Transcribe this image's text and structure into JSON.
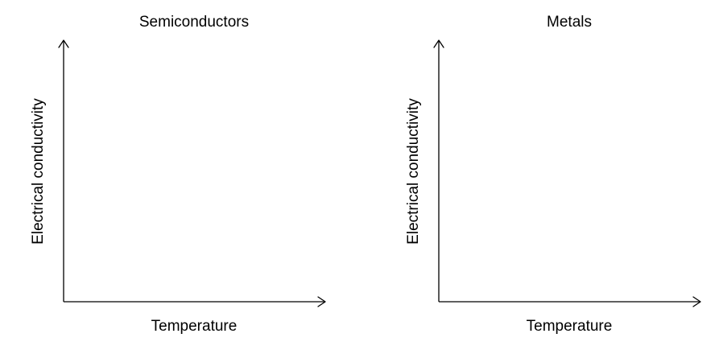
{
  "figure": {
    "panels": [
      {
        "title": "Semiconductors",
        "xlabel": "Temperature",
        "ylabel": "Electrical conductivity"
      },
      {
        "title": "Metals",
        "xlabel": "Temperature",
        "ylabel": "Electrical conductivity"
      }
    ],
    "colors": {
      "axis": "#000000",
      "text": "#000000",
      "background": "#ffffff"
    }
  }
}
